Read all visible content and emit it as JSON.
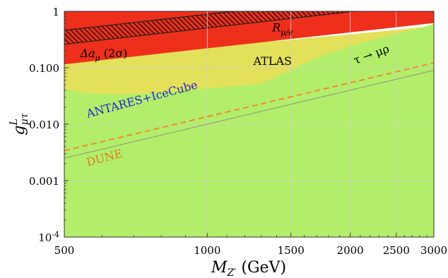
{
  "chart_data": {
    "type": "area",
    "title": "",
    "xlabel": "M_{Z'} (GeV)",
    "xlabel_parts": {
      "base": "M",
      "sub": "Z′",
      "unit": "(GeV)"
    },
    "ylabel": "g^L_{μτ}",
    "ylabel_parts": {
      "base": "g",
      "sup": "L",
      "sub": "μτ"
    },
    "x_scale": "log",
    "y_scale": "log",
    "xlim": [
      500,
      3000
    ],
    "ylim": [
      0.0001,
      1
    ],
    "grid": true,
    "x_ticks": [
      {
        "value": 500,
        "label": "500"
      },
      {
        "value": 1000,
        "label": "1000"
      },
      {
        "value": 1500,
        "label": "1500"
      },
      {
        "value": 2000,
        "label": "2000"
      },
      {
        "value": 2500,
        "label": "2500"
      },
      {
        "value": 3000,
        "label": "3000"
      }
    ],
    "y_ticks": [
      {
        "value": 1,
        "label": "1"
      },
      {
        "value": 0.1,
        "label": "0.100"
      },
      {
        "value": 0.01,
        "label": "0.010"
      },
      {
        "value": 0.001,
        "label": "0.001"
      },
      {
        "value": 0.0001,
        "label": "10",
        "sup": "-4"
      }
    ],
    "series": [
      {
        "name": "τ → μρ",
        "kind": "fill-below",
        "color": "#bdbdbd",
        "x": [
          500,
          3000
        ],
        "y": [
          0.0025,
          0.09
        ]
      },
      {
        "name": "ANTARES+IceCube",
        "kind": "fill-below",
        "color": "#5fe3dc",
        "x": [
          500,
          520,
          560,
          600,
          650,
          700,
          800
        ],
        "y": [
          0.042,
          0.036,
          0.033,
          0.032,
          0.031,
          0.03,
          0.029
        ]
      },
      {
        "name": "ATLAS",
        "kind": "fill-below",
        "color": "#e3e05a",
        "x": [
          500,
          600,
          700,
          800,
          900,
          1000,
          1100,
          1200,
          1300,
          1400,
          1500,
          1600,
          1800,
          2000,
          2200,
          2500,
          2800,
          3000
        ],
        "y": [
          0.12,
          0.14,
          0.165,
          0.19,
          0.215,
          0.24,
          0.26,
          0.28,
          0.29,
          0.3,
          0.31,
          0.33,
          0.36,
          0.39,
          0.42,
          0.47,
          0.52,
          0.56
        ]
      },
      {
        "name": "ATLAS",
        "kind": "fill-below",
        "color": "#b2ee69",
        "x": [
          500,
          550,
          600,
          700,
          800,
          900,
          1000,
          1100,
          1200,
          1300,
          1400,
          1500,
          1600,
          1800,
          2000,
          2200,
          2500,
          2800,
          3000
        ],
        "y": [
          0.042,
          0.036,
          0.034,
          0.034,
          0.036,
          0.04,
          0.043,
          0.046,
          0.048,
          0.052,
          0.07,
          0.09,
          0.12,
          0.18,
          0.24,
          0.3,
          0.4,
          0.5,
          0.6
        ]
      },
      {
        "name": "R_{μ/e}",
        "kind": "fill-above",
        "color": "#ee2f1c",
        "x": [
          500,
          3000
        ],
        "y": [
          0.115,
          0.62
        ]
      },
      {
        "name": "Δa_μ (2σ)",
        "kind": "band",
        "color": "#1e1e1e",
        "hatch": true,
        "x": [
          500,
          3000
        ],
        "y_low": [
          0.26,
          1.45
        ],
        "y_high": [
          0.46,
          2.5
        ]
      },
      {
        "name": "DUNE",
        "kind": "dashed-line",
        "color": "#f08a35",
        "x": [
          500,
          3000
        ],
        "y": [
          0.0034,
          0.122
        ]
      }
    ],
    "annotations": [
      {
        "text": "Δa",
        "sub": "μ",
        "tail": "(2σ)",
        "color": "#000000",
        "x": 540,
        "y": 0.155
      },
      {
        "text": "R",
        "sub": "μ/e",
        "color": "#000000",
        "x": 1370,
        "y": 0.44
      },
      {
        "text": "ATLAS",
        "color": "#000000",
        "x": 1250,
        "y": 0.112
      },
      {
        "text": "τ → μρ",
        "color": "#000000",
        "x": 2050,
        "y": 0.115,
        "rotate": -20
      },
      {
        "text": "ANTARES+IceCube",
        "color": "#2323cc",
        "x": 560,
        "y": 0.013,
        "rotate": -15
      },
      {
        "text": "DUNE",
        "color": "#e07a22",
        "x": 560,
        "y": 0.0018,
        "rotate": -15
      }
    ]
  }
}
